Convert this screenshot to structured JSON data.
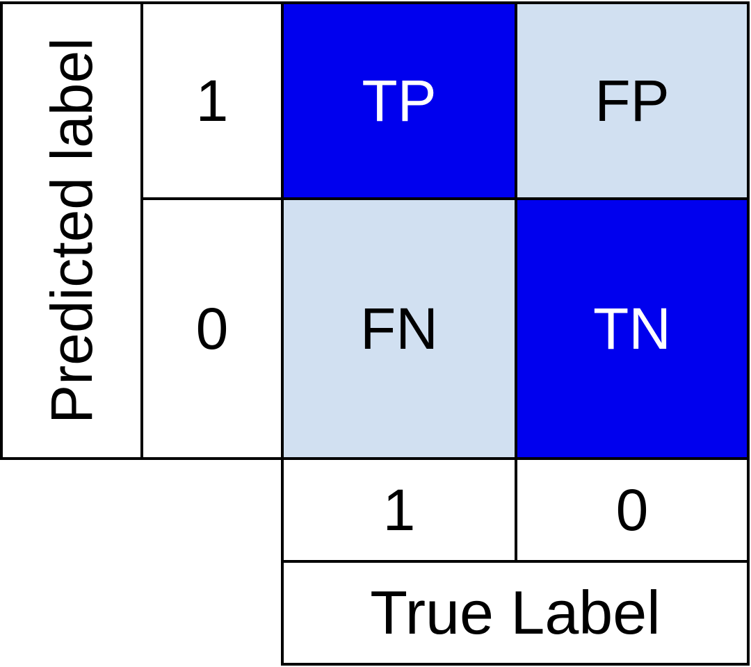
{
  "matrix": {
    "y_axis_title": "Predicted label",
    "x_axis_title": "True Label",
    "row_labels": [
      "1",
      "0"
    ],
    "col_labels": [
      "1",
      "0"
    ],
    "cells": [
      [
        "TP",
        "FP"
      ],
      [
        "FN",
        "TN"
      ]
    ],
    "colors": {
      "strong": "#0000ee",
      "light": "#d1e0f1",
      "strong_text": "#ffffff",
      "light_text": "#000000",
      "border": "#000000"
    }
  }
}
